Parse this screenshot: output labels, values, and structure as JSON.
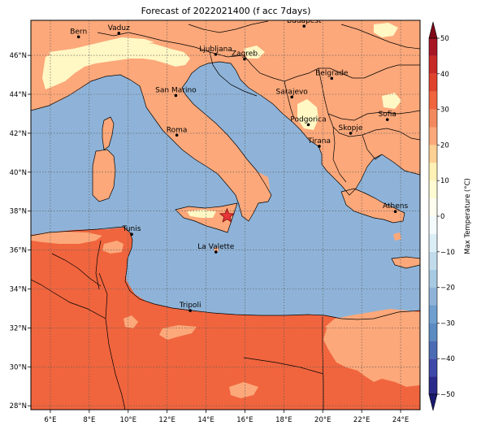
{
  "title": "Forecast of 2022021400 (f acc 7days)",
  "map": {
    "lon_range": [
      5,
      25
    ],
    "lat_range": [
      27.8,
      47.8
    ],
    "lon_ticks": [
      {
        "value": 6,
        "label": "6°E"
      },
      {
        "value": 8,
        "label": "8°E"
      },
      {
        "value": 10,
        "label": "10°E"
      },
      {
        "value": 12,
        "label": "12°E"
      },
      {
        "value": 14,
        "label": "14°E"
      },
      {
        "value": 16,
        "label": "16°E"
      },
      {
        "value": 18,
        "label": "18°E"
      },
      {
        "value": 20,
        "label": "20°E"
      },
      {
        "value": 22,
        "label": "22°E"
      },
      {
        "value": 24,
        "label": "24°E"
      }
    ],
    "lat_ticks": [
      {
        "value": 28,
        "label": "28°N"
      },
      {
        "value": 30,
        "label": "30°N"
      },
      {
        "value": 32,
        "label": "32°N"
      },
      {
        "value": 34,
        "label": "34°N"
      },
      {
        "value": 36,
        "label": "36°N"
      },
      {
        "value": 38,
        "label": "38°N"
      },
      {
        "value": 40,
        "label": "40°N"
      },
      {
        "value": 42,
        "label": "42°N"
      },
      {
        "value": 44,
        "label": "44°N"
      },
      {
        "value": 46,
        "label": "46°N"
      }
    ],
    "grid": true,
    "colors": {
      "sea": "#8fb3d8",
      "land_warm": "#fca87a",
      "land_hot": "#f0653e",
      "land_mild": "#fff7c4",
      "star": "#e8363a"
    },
    "cities": [
      {
        "name": "Bern",
        "lon": 7.45,
        "lat": 46.95
      },
      {
        "name": "Vaduz",
        "lon": 9.52,
        "lat": 47.14
      },
      {
        "name": "Budapest",
        "lon": 19.04,
        "lat": 47.5
      },
      {
        "name": "Ljubljana",
        "lon": 14.5,
        "lat": 46.05
      },
      {
        "name": "Zagreb",
        "lon": 15.98,
        "lat": 45.81
      },
      {
        "name": "Belgrade",
        "lon": 20.46,
        "lat": 44.82
      },
      {
        "name": "San Marino",
        "lon": 12.45,
        "lat": 43.94
      },
      {
        "name": "Sarajevo",
        "lon": 18.41,
        "lat": 43.86
      },
      {
        "name": "Sofia",
        "lon": 23.32,
        "lat": 42.7
      },
      {
        "name": "Podgorica",
        "lon": 19.26,
        "lat": 42.44
      },
      {
        "name": "Skopje",
        "lon": 21.43,
        "lat": 42.0
      },
      {
        "name": "Roma",
        "lon": 12.5,
        "lat": 41.9
      },
      {
        "name": "Tirana",
        "lon": 19.82,
        "lat": 41.33
      },
      {
        "name": "Athens",
        "lon": 23.73,
        "lat": 37.98
      },
      {
        "name": "Tunis",
        "lon": 10.18,
        "lat": 36.81
      },
      {
        "name": "La Valette",
        "lon": 14.51,
        "lat": 35.9
      },
      {
        "name": "Tripoli",
        "lon": 13.19,
        "lat": 32.89
      }
    ],
    "marker": {
      "lon": 15.08,
      "lat": 37.75
    }
  },
  "colorbar": {
    "label": "Max Temperature (°C)",
    "ticks": [
      50,
      40,
      30,
      20,
      10,
      0,
      -10,
      -20,
      -30,
      -40,
      -50
    ],
    "levels": [
      -50,
      -45,
      -40,
      -35,
      -30,
      -25,
      -20,
      -15,
      -10,
      -5,
      0,
      5,
      10,
      15,
      20,
      25,
      30,
      35,
      40,
      45,
      50
    ],
    "colors": [
      "#2a2a8a",
      "#3e48a8",
      "#4b6cb4",
      "#5a8cc2",
      "#6e9fce",
      "#8fb3d8",
      "#a7cae2",
      "#c2dcec",
      "#dbeef6",
      "#f3fbfc",
      "#fefdf0",
      "#fffbd2",
      "#fff2b4",
      "#fdd093",
      "#fca87a",
      "#f28a5e",
      "#f0653e",
      "#e0432c",
      "#c82a26",
      "#a81624"
    ],
    "under_color": "#1a1a6e",
    "over_color": "#800a1a"
  }
}
